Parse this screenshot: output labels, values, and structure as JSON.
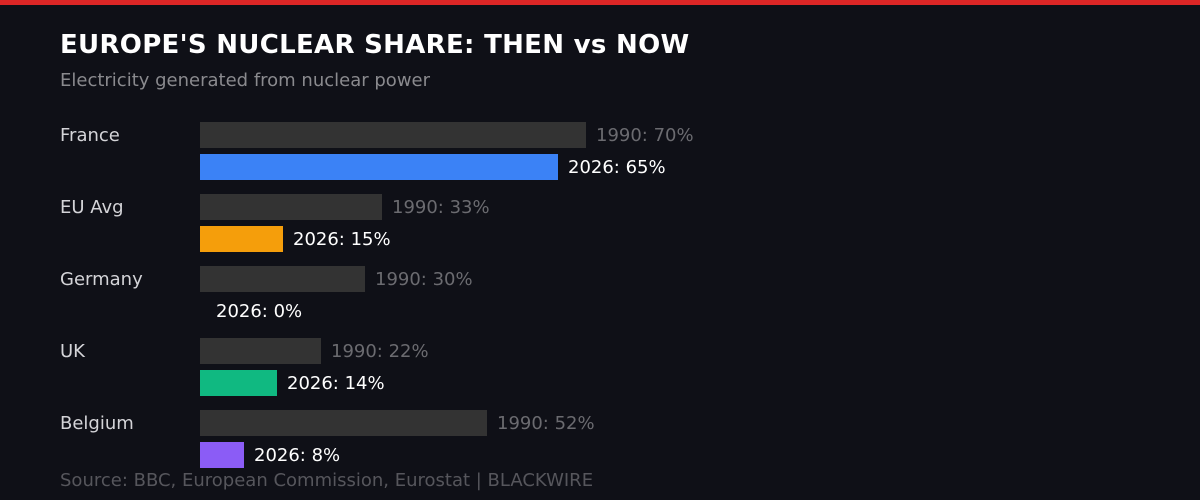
{
  "header": {
    "title": "EUROPE'S NUCLEAR SHARE: THEN vs NOW",
    "subtitle": "Electricity generated from nuclear power"
  },
  "footer": {
    "source": "Source: BBC, European Commission, Eurostat  |  BLACKWIRE"
  },
  "colors": {
    "background": "#0f1017",
    "accent_stripe": "#dc2626",
    "bar_1990": "#333333",
    "france_2026": "#3b82f6",
    "eu_avg_2026": "#f59e0b",
    "germany_2026": "#ef4444",
    "uk_2026": "#10b981",
    "belgium_2026": "#8b5cf6"
  },
  "chart_data": {
    "type": "bar",
    "orientation": "horizontal",
    "title": "EUROPE'S NUCLEAR SHARE: THEN vs NOW",
    "subtitle": "Electricity generated from nuclear power",
    "categories": [
      "France",
      "EU Avg",
      "Germany",
      "UK",
      "Belgium"
    ],
    "series": [
      {
        "name": "1990",
        "values": [
          70,
          33,
          30,
          22,
          52
        ],
        "color": "#333333"
      },
      {
        "name": "2026",
        "values": [
          65,
          15,
          0,
          14,
          8
        ],
        "colors": [
          "#3b82f6",
          "#f59e0b",
          "#ef4444",
          "#10b981",
          "#8b5cf6"
        ]
      }
    ],
    "unit": "%",
    "xlabel": "",
    "ylabel": "",
    "grid": false,
    "legend": "inline data labels",
    "source": "Source: BBC, European Commission, Eurostat  |  BLACKWIRE"
  },
  "rows": [
    {
      "country": "France",
      "old_label": "1990: 70%",
      "new_label": "2026: 65%"
    },
    {
      "country": "EU Avg",
      "old_label": "1990: 33%",
      "new_label": "2026: 15%"
    },
    {
      "country": "Germany",
      "old_label": "1990: 30%",
      "new_label": "2026: 0%"
    },
    {
      "country": "UK",
      "old_label": "1990: 22%",
      "new_label": "2026: 14%"
    },
    {
      "country": "Belgium",
      "old_label": "1990: 52%",
      "new_label": "2026: 8%"
    }
  ]
}
